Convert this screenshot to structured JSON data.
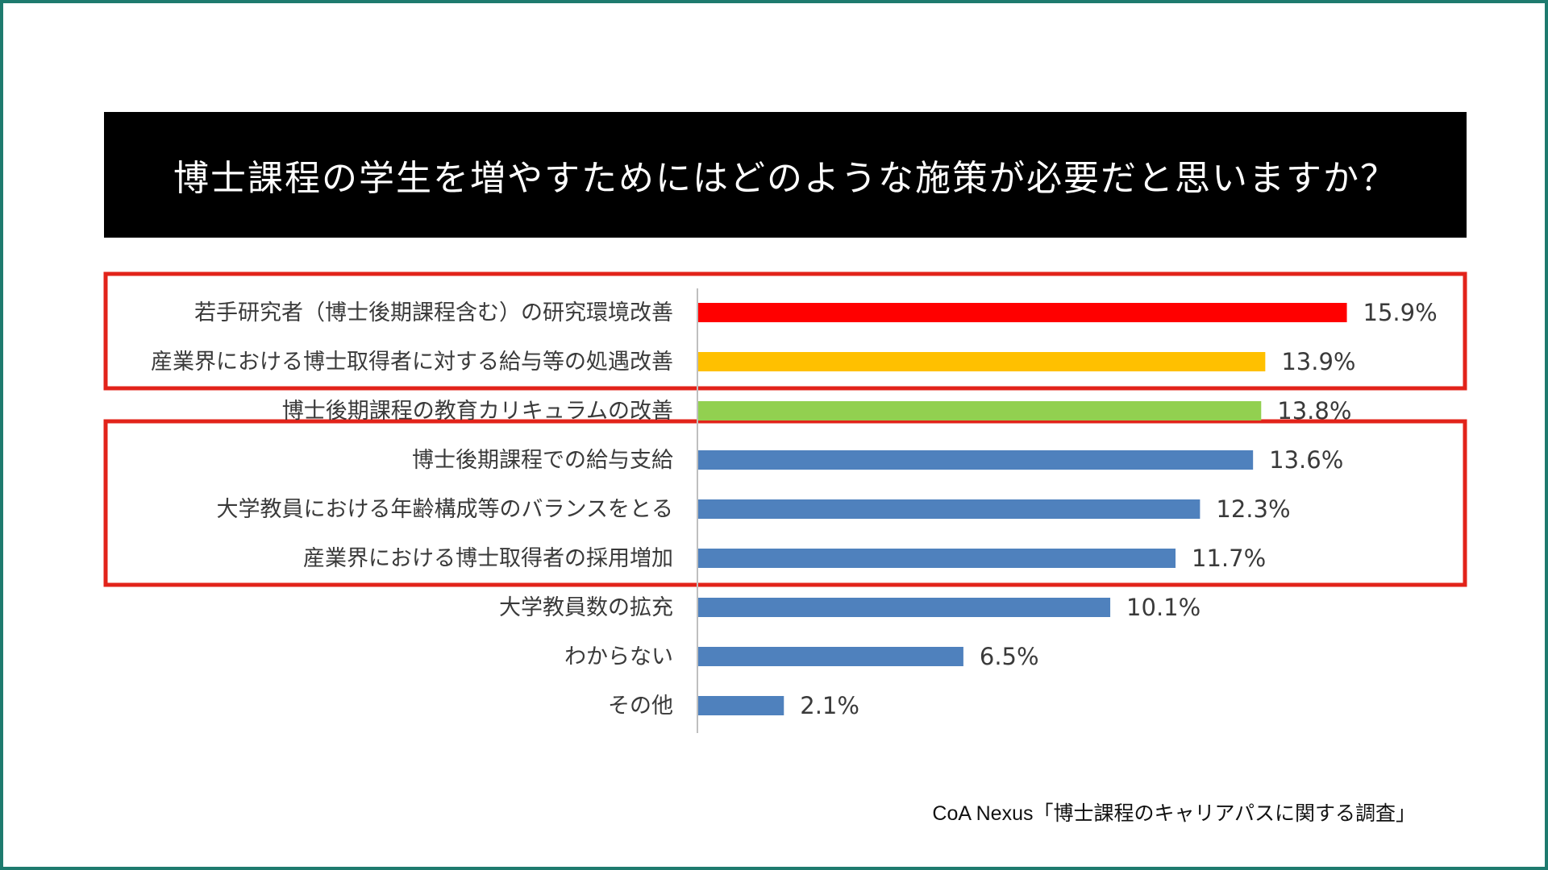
{
  "title": "博士課程の学生を増やすためにはどのような施策が必要だと思いますか？",
  "source": "CoA Nexus「博士課程のキャリアパスに関する調査」",
  "colors": {
    "frame": "#1e7a6e",
    "highlight_box": "#e2231a",
    "bar_red": "#ff0000",
    "bar_yellow": "#ffc000",
    "bar_green": "#92d050",
    "bar_blue": "#4f81bd",
    "axis": "#bfbfbf",
    "label_text": "#3a3a3a"
  },
  "chart_data": {
    "type": "bar",
    "orientation": "horizontal",
    "title": "博士課程の学生を増やすためにはどのような施策が必要だと思いますか？",
    "unit": "%",
    "xlim": [
      0,
      16
    ],
    "categories": [
      "若手研究者（博士後期課程含む）の研究環境改善",
      "産業界における博士取得者に対する給与等の処遇改善",
      "博士後期課程の教育カリキュラムの改善",
      "博士後期課程での給与支給",
      "大学教員における年齢構成等のバランスをとる",
      "産業界における博士取得者の採用増加",
      "大学教員数の拡充",
      "わからない",
      "その他"
    ],
    "values": [
      15.9,
      13.9,
      13.8,
      13.6,
      12.3,
      11.7,
      10.1,
      6.5,
      2.1
    ],
    "value_labels": [
      "15.9%",
      "13.9%",
      "13.8%",
      "13.6%",
      "12.3%",
      "11.7%",
      "10.1%",
      "6.5%",
      "2.1%"
    ],
    "bar_colors": [
      "#ff0000",
      "#ffc000",
      "#92d050",
      "#4f81bd",
      "#4f81bd",
      "#4f81bd",
      "#4f81bd",
      "#4f81bd",
      "#4f81bd"
    ],
    "highlight_groups": [
      [
        0,
        1
      ],
      [
        3,
        5
      ]
    ]
  }
}
